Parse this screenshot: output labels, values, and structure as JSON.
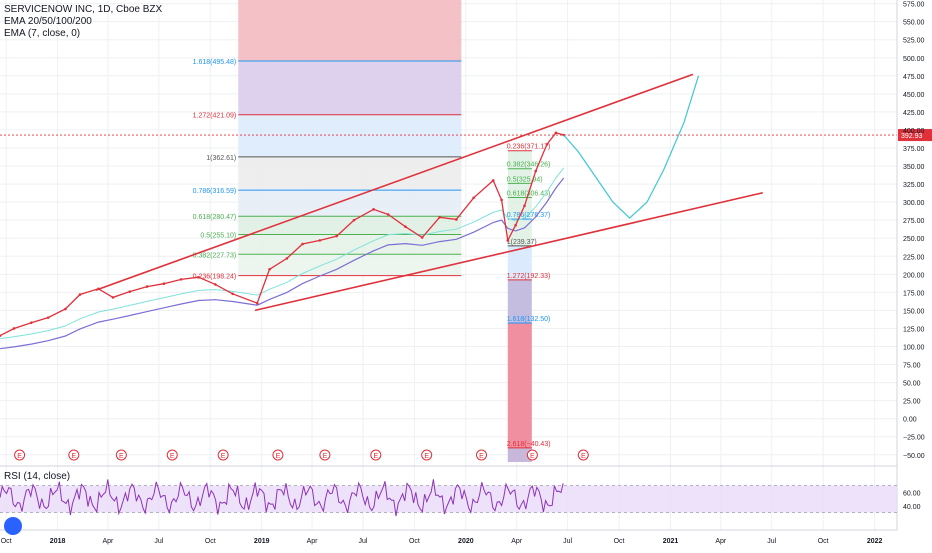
{
  "legend": {
    "title": "SERVICENOW INC, 1D, Cboe BZX",
    "ema_multi": "EMA 20/50/100/200",
    "ema_7": "EMA (7, close, 0)"
  },
  "rsi_panel": {
    "label": "RSI (14, close)",
    "band_upper": 70,
    "band_lower": 30
  },
  "last_price": {
    "value": 392.93,
    "label": "392.93",
    "color": "#e0303a"
  },
  "colors": {
    "price": "#e0303a",
    "ema": "#7b6fd6",
    "channel": "#e0303a",
    "projection": "#3fc7d1",
    "rsi": "#8e33b8",
    "rsi_fill": "#e8dbf7",
    "fib_blue": "#2196f3",
    "fib_green": "#4caf50",
    "fib_red": "#e0303a",
    "event_marker": "#e0303a"
  },
  "chart_data": [
    {
      "type": "line",
      "y_axis": {
        "min": -60,
        "max": 580,
        "ticks": [
          -50,
          -25,
          0,
          25,
          50,
          75,
          100,
          125,
          150,
          175,
          200,
          225,
          250,
          275,
          300,
          325,
          350,
          375,
          400,
          425,
          450,
          475,
          500,
          525,
          550,
          575
        ],
        "tick_labels": [
          "−50.00",
          "−25.00",
          "0.00",
          "25.00",
          "50.00",
          "75.00",
          "100.00",
          "125.00",
          "150.00",
          "175.00",
          "200.00",
          "225.00",
          "250.00",
          "275.00",
          "300.00",
          "325.00",
          "350.00",
          "375.00",
          "400.00",
          "425.00",
          "450.00",
          "475.00",
          "500.00",
          "525.00",
          "550.00",
          "575.00"
        ]
      },
      "x_axis": {
        "ticks": [
          "Oct",
          "2018",
          "Apr",
          "Jul",
          "Oct",
          "2019",
          "Apr",
          "Jul",
          "Oct",
          "2020",
          "Apr",
          "Jul",
          "Oct",
          "2021",
          "Apr",
          "Jul",
          "Oct",
          "2022"
        ],
        "start": "2017-09-20",
        "end": "2022-02-10"
      },
      "grid": true,
      "series": [
        {
          "x": [
            "2017-09-20",
            "2017-10-15",
            "2017-11-15",
            "2017-12-15",
            "2018-01-15",
            "2018-02-10",
            "2018-03-15",
            "2018-04-10",
            "2018-05-10",
            "2018-06-10",
            "2018-07-10",
            "2018-08-10",
            "2018-09-10",
            "2018-10-10",
            "2018-11-10",
            "2018-12-24",
            "2019-01-15",
            "2019-02-15",
            "2019-03-15",
            "2019-04-15",
            "2019-05-15",
            "2019-06-15",
            "2019-07-20",
            "2019-08-15",
            "2019-09-15",
            "2019-10-15",
            "2019-11-15",
            "2019-12-15",
            "2020-01-15",
            "2020-02-19",
            "2020-03-05",
            "2020-03-16",
            "2020-03-30",
            "2020-04-15",
            "2020-05-05",
            "2020-05-25",
            "2020-06-10",
            "2020-06-24"
          ],
          "values": [
            115,
            125,
            133,
            140,
            152,
            172,
            180,
            168,
            176,
            183,
            187,
            193,
            196,
            186,
            173,
            160,
            207,
            222,
            242,
            247,
            253,
            275,
            290,
            283,
            266,
            251,
            279,
            276,
            306,
            330,
            303,
            247,
            268,
            295,
            343,
            380,
            396,
            393
          ]
        }
      ],
      "fibonacci": [
        {
          "name": "upper",
          "levels": [
            {
              "ratio": "0.236",
              "value": 198.24,
              "label": "0.236(198.24)"
            },
            {
              "ratio": "0.382",
              "value": 227.73,
              "label": "0.382(227.73)"
            },
            {
              "ratio": "0.5",
              "value": 255.1,
              "label": "0.5(255.10)"
            },
            {
              "ratio": "0.618",
              "value": 280.47,
              "label": "0.618(280.47)"
            },
            {
              "ratio": "0.786",
              "value": 316.59,
              "label": "0.786(316.59)"
            },
            {
              "ratio": "1",
              "value": 362.61,
              "label": "1(362.61)"
            },
            {
              "ratio": "1.272",
              "value": 421.09,
              "label": "1.272(421.09)"
            },
            {
              "ratio": "1.618",
              "value": 495.48,
              "label": "1.618(495.48)"
            }
          ]
        },
        {
          "name": "lower",
          "levels": [
            {
              "ratio": "0.236",
              "value": 371.17,
              "label": "0.236(371.17)"
            },
            {
              "ratio": "0.382",
              "value": 346.26,
              "label": "0.382(346.26)"
            },
            {
              "ratio": "0.5",
              "value": 325.94,
              "label": "0.5(325.94)"
            },
            {
              "ratio": "0.618",
              "value": 306.43,
              "label": "0.618(306.43)"
            },
            {
              "ratio": "0.786",
              "value": 276.37,
              "label": "0.786(276.37)"
            },
            {
              "ratio": "1",
              "value": 239.37,
              "label": "1(239.37)"
            },
            {
              "ratio": "1.272",
              "value": 192.33,
              "label": "1.272(192.33)"
            },
            {
              "ratio": "1.618",
              "value": 132.5,
              "label": "1.618(132.50)"
            },
            {
              "ratio": "2.618",
              "value": -40.43,
              "label": "2.618(−40.43)"
            }
          ]
        }
      ],
      "event_marker": "E"
    },
    {
      "type": "line",
      "name": "RSI",
      "y_axis": {
        "ticks": [
          40,
          60
        ],
        "tick_labels": [
          "40.00",
          "60.00"
        ]
      },
      "bands": {
        "upper": 70,
        "lower": 30
      }
    }
  ]
}
